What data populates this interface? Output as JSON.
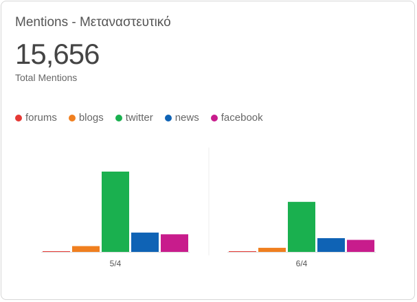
{
  "widget": {
    "title": "Mentions - Μεταναστευτικό",
    "total_value": "15,656",
    "total_label": "Total Mentions"
  },
  "legend": [
    {
      "label": "forums",
      "color": "#e53935"
    },
    {
      "label": "blogs",
      "color": "#f07f1f"
    },
    {
      "label": "twitter",
      "color": "#1ab04f"
    },
    {
      "label": "news",
      "color": "#0f63b5"
    },
    {
      "label": "facebook",
      "color": "#c81c8c"
    }
  ],
  "chart_data": {
    "type": "bar",
    "categories": [
      "5/4",
      "6/4"
    ],
    "series": [
      {
        "name": "forums",
        "color": "#e53935",
        "values": [
          5,
          5
        ]
      },
      {
        "name": "blogs",
        "color": "#f07f1f",
        "values": [
          270,
          190
        ]
      },
      {
        "name": "twitter",
        "color": "#1ab04f",
        "values": [
          3740,
          2330
        ]
      },
      {
        "name": "news",
        "color": "#0f63b5",
        "values": [
          900,
          640
        ]
      },
      {
        "name": "facebook",
        "color": "#c81c8c",
        "values": [
          820,
          560
        ]
      }
    ],
    "ylim": [
      0,
      3740
    ],
    "grid": false,
    "legend_position": "top-left"
  }
}
